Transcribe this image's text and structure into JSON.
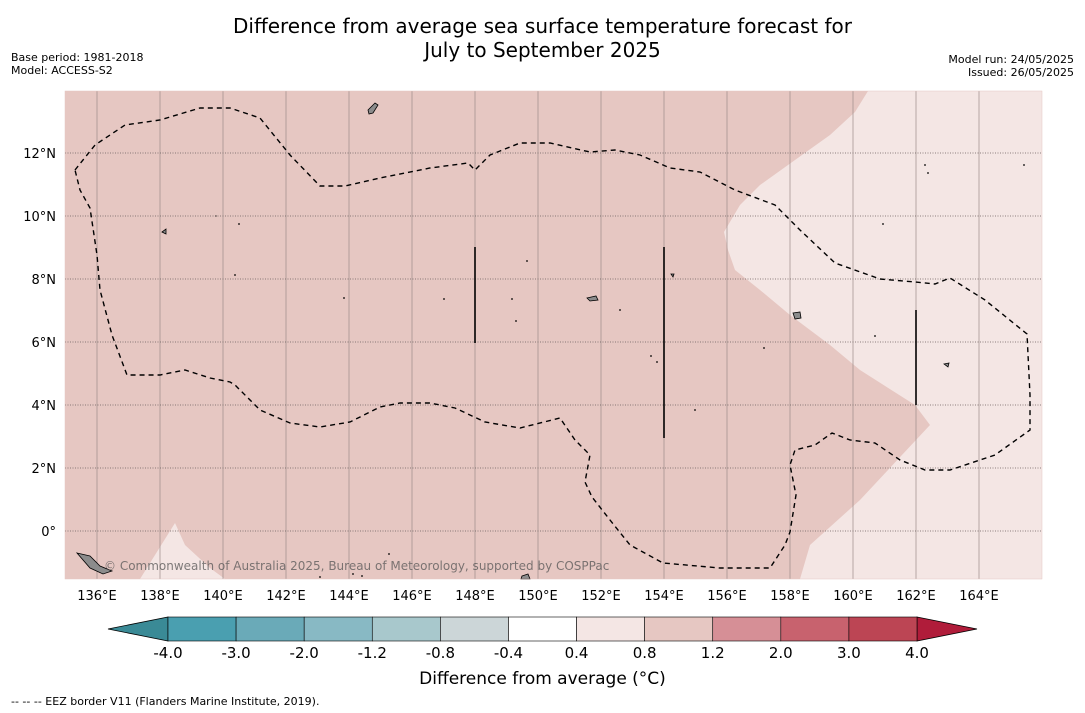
{
  "header": {
    "title_line1": "Difference from average sea surface temperature forecast for",
    "title_line2": "July to September 2025",
    "base_period": "Base period: 1981-2018",
    "model": "Model: ACCESS-S2",
    "model_run": "Model run: 24/05/2025",
    "issued": "Issued: 26/05/2025"
  },
  "map": {
    "lon_ticks": [
      "136°E",
      "138°E",
      "140°E",
      "142°E",
      "144°E",
      "146°E",
      "148°E",
      "150°E",
      "152°E",
      "154°E",
      "156°E",
      "158°E",
      "160°E",
      "162°E",
      "164°E"
    ],
    "lat_ticks": [
      "12°N",
      "10°N",
      "8°N",
      "6°N",
      "4°N",
      "2°N",
      "0°"
    ],
    "copyright": "© Commonwealth of Australia 2025, Bureau of Meteorology, supported by COSPPac",
    "colors": {
      "anomaly_0_8_to_1_2": "#e6c7c2",
      "anomaly_0_4_to_0_8": "#f4e6e4",
      "land": "#8c8c8c"
    }
  },
  "colorbar": {
    "title": "Difference from average (°C)",
    "tick_labels": [
      "-4.0",
      "-3.0",
      "-2.0",
      "-1.2",
      "-0.8",
      "-0.4",
      "0.4",
      "0.8",
      "1.2",
      "2.0",
      "3.0",
      "4.0"
    ],
    "colors": [
      "#4a9fb0",
      "#6aaab8",
      "#88b9c4",
      "#a8c8cc",
      "#ccd6d8",
      "#ffffff",
      "#f4e6e4",
      "#e6c7c2",
      "#d68f96",
      "#c8626e",
      "#bc4554"
    ],
    "under_color": "#3a8a96",
    "over_color": "#b01c3a"
  },
  "footnote": "--  --  -- EEZ border V11 (Flanders Marine Institute, 2019)."
}
